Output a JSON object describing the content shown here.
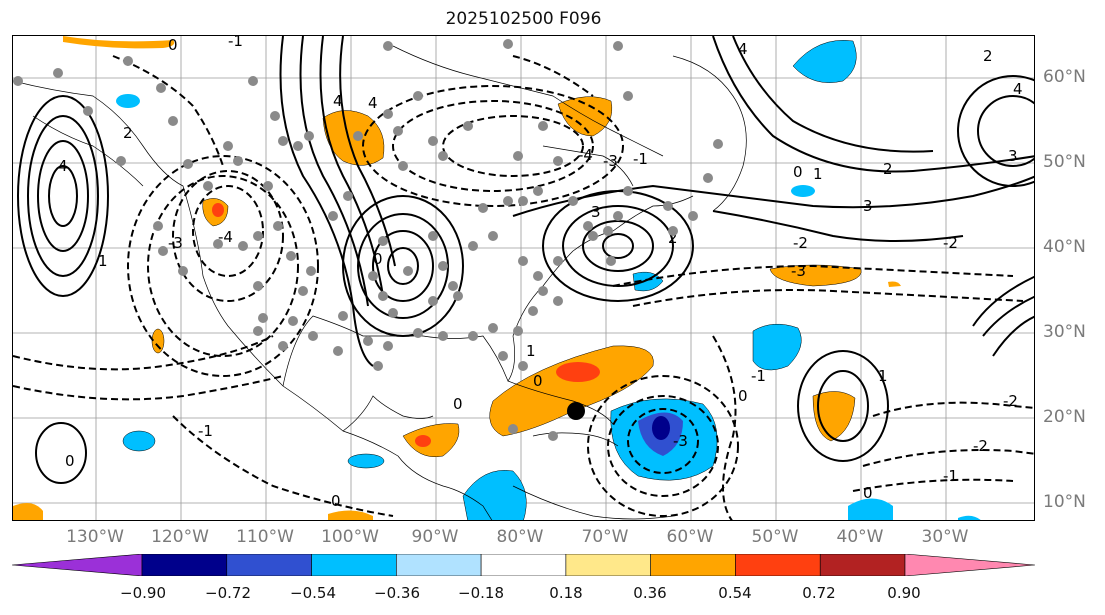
{
  "title": "2025102500 F096",
  "longitude_labels": [
    "130°W",
    "120°W",
    "110°W",
    "100°W",
    "90°W",
    "80°W",
    "70°W",
    "60°W",
    "50°W",
    "40°W",
    "30°W"
  ],
  "latitude_labels": [
    "60°N",
    "50°N",
    "40°N",
    "30°N",
    "20°N",
    "10°N"
  ],
  "colorbar": {
    "tick_labels": [
      "−0.90",
      "−0.72",
      "−0.54",
      "−0.36",
      "−0.18",
      "0.18",
      "0.36",
      "0.54",
      "0.72",
      "0.90"
    ],
    "colors": [
      "#9b30d8",
      "#00008b",
      "#3050d0",
      "#00bfff",
      "#b0e2ff",
      "#ffffff",
      "#ffe88a",
      "#ffa500",
      "#ff4010",
      "#b22222",
      "#ff88b0"
    ]
  },
  "contour_labels": [
    "-1",
    "-2",
    "-3",
    "-4",
    "0",
    "1",
    "2",
    "3",
    "4"
  ],
  "marker": "black-circle-storm-center"
}
